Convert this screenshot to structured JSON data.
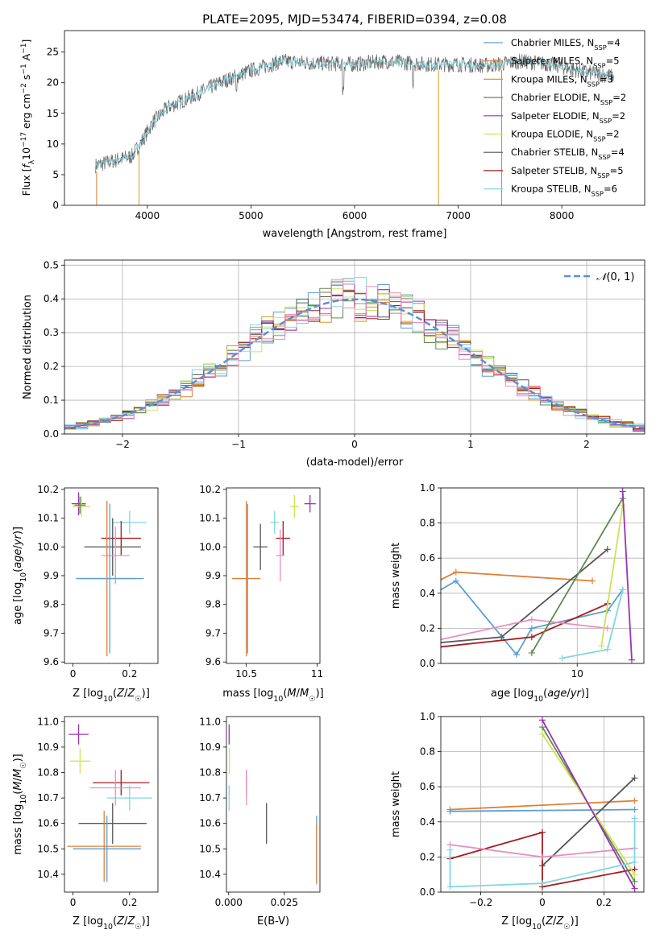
{
  "figure": {
    "title": "PLATE=2095, MJD=53474, FIBERID=0394, z=0.08"
  },
  "chart_data": [
    {
      "id": "spectrum",
      "type": "line",
      "xlabel": "wavelength [Angstrom, rest frame]",
      "ylabel": "Flux [fλ10⁻¹⁷ erg cm⁻² s⁻¹ A⁻¹]",
      "xlim": [
        3200,
        8800
      ],
      "ylim": [
        0,
        28.5
      ],
      "xticks": [
        4000,
        5000,
        6000,
        7000,
        8000
      ],
      "yticks": [
        0,
        5,
        10,
        15,
        20,
        25
      ],
      "x_range": [
        3500,
        8500
      ],
      "continuum": [
        [
          3500,
          6.5
        ],
        [
          3850,
          8
        ],
        [
          3950,
          10.5
        ],
        [
          4050,
          13.5
        ],
        [
          4200,
          16
        ],
        [
          4400,
          17.5
        ],
        [
          4700,
          20
        ],
        [
          5000,
          22
        ],
        [
          5300,
          23.5
        ],
        [
          5600,
          23.2
        ],
        [
          6000,
          23
        ],
        [
          6300,
          23.5
        ],
        [
          6700,
          23
        ],
        [
          7000,
          23
        ],
        [
          7300,
          22.8
        ],
        [
          7600,
          23.5
        ],
        [
          7900,
          23
        ],
        [
          8200,
          21.8
        ],
        [
          8500,
          21
        ]
      ],
      "legend": [
        {
          "name": "Chabrier MILES, N_SSP=4",
          "pre": "Chabrier MILES, N",
          "sub": "SSP",
          "post": "=4",
          "color": "#5f9ed1"
        },
        {
          "name": "Salpeter MILES, N_SSP=5",
          "pre": "Salpeter MILES, N",
          "sub": "SSP",
          "post": "=5",
          "color": "#e07f34"
        },
        {
          "name": "Kroupa MILES, N_SSP=3",
          "pre": "Kroupa MILES, N",
          "sub": "SSP",
          "post": "=3",
          "color": "#d89a1a"
        },
        {
          "name": "Chabrier ELODIE, N_SSP=2",
          "pre": "Chabrier ELODIE, N",
          "sub": "SSP",
          "post": "=2",
          "color": "#5e8c4e"
        },
        {
          "name": "Salpeter ELODIE, N_SSP=2",
          "pre": "Salpeter ELODIE, N",
          "sub": "SSP",
          "post": "=2",
          "color": "#9b33b3"
        },
        {
          "name": "Kroupa ELODIE, N_SSP=2",
          "pre": "Kroupa ELODIE, N",
          "sub": "SSP",
          "post": "=2",
          "color": "#cce35a"
        },
        {
          "name": "Chabrier STELIB, N_SSP=4",
          "pre": "Chabrier STELIB, N",
          "sub": "SSP",
          "post": "=4",
          "color": "#555555"
        },
        {
          "name": "Salpeter STELIB, N_SSP=5",
          "pre": "Salpeter STELIB, N",
          "sub": "SSP",
          "post": "=5",
          "color": "#a51c1c"
        },
        {
          "name": "Kroupa STELIB, N_SSP=6",
          "pre": "Kroupa STELIB, N",
          "sub": "SSP",
          "post": "=6",
          "color": "#7fd6e0"
        }
      ]
    },
    {
      "id": "residuals",
      "type": "histogram",
      "xlabel": "(data-model)/error",
      "ylabel": "Normed distribution",
      "xlim": [
        -2.5,
        2.5
      ],
      "ylim": [
        0,
        0.515
      ],
      "xticks": [
        -2,
        -1,
        0,
        1,
        2
      ],
      "yticks": [
        0.0,
        0.1,
        0.2,
        0.3,
        0.4,
        0.5
      ],
      "grid": true,
      "bin_width": 0.1,
      "legend_label": "𝒩(0, 1)",
      "reference_curve": "gaussian mean 0, sigma 1",
      "series_colors": [
        "#5f9ed1",
        "#e07f34",
        "#d89a1a",
        "#5e8c4e",
        "#9b33b3",
        "#cce35a",
        "#555555",
        "#a51c1c",
        "#7fd6e0",
        "#e88fbf"
      ]
    },
    {
      "id": "age-vs-Z",
      "type": "errorbar",
      "xlabel": "Z [log10(Z/Z☉)]",
      "ylabel": "age  [log10(age/yr)]",
      "xlim": [
        -0.03,
        0.3
      ],
      "ylim": [
        9.595,
        10.205
      ],
      "xticks": [
        0.0,
        0.2
      ],
      "yticks": [
        9.6,
        9.7,
        9.8,
        9.9,
        10.0,
        10.1,
        10.2
      ],
      "points": [
        {
          "x": 0.02,
          "y": 10.15,
          "xerr": 0.025,
          "yerr": 0.04,
          "color": "#9b33b3"
        },
        {
          "x": 0.03,
          "y": 10.14,
          "xerr": 0.03,
          "yerr": 0.035,
          "color": "#cce35a"
        },
        {
          "x": 0.025,
          "y": 10.145,
          "xerr": 0.02,
          "yerr": 0.03,
          "color": "#5e8c4e"
        },
        {
          "x": 0.2,
          "y": 10.085,
          "xerr": 0.06,
          "yerr": 0.04,
          "color": "#7fd6e0"
        },
        {
          "x": 0.17,
          "y": 10.03,
          "xerr": 0.07,
          "yerr": 0.06,
          "color": "#a51c1c"
        },
        {
          "x": 0.14,
          "y": 10.0,
          "xerr": 0.1,
          "yerr": 0.1,
          "color": "#555555"
        },
        {
          "x": 0.15,
          "y": 9.97,
          "xerr": 0.05,
          "yerr": 0.1,
          "color": "#e88fbf"
        },
        {
          "x": 0.12,
          "y": 9.89,
          "xerr": 0.1,
          "yerr": 0.27,
          "color": "#e07f34"
        },
        {
          "x": 0.13,
          "y": 9.89,
          "xerr": 0.12,
          "yerr": 0.26,
          "color": "#5f9ed1"
        }
      ]
    },
    {
      "id": "age-vs-mass",
      "type": "errorbar",
      "xlabel": "mass [log10(M/M☉)]",
      "xlim": [
        10.36,
        11.02
      ],
      "ylim": [
        9.595,
        10.205
      ],
      "xticks": [
        10.5,
        11.0
      ],
      "yticks": [
        9.6,
        9.7,
        9.8,
        9.9,
        10.0,
        10.1,
        10.2
      ],
      "points": [
        {
          "x": 10.95,
          "y": 10.15,
          "xerr": 0.04,
          "yerr": 0.03,
          "color": "#9b33b3"
        },
        {
          "x": 10.84,
          "y": 10.14,
          "xerr": 0.03,
          "yerr": 0.04,
          "color": "#cce35a"
        },
        {
          "x": 10.7,
          "y": 10.085,
          "xerr": 0.03,
          "yerr": 0.04,
          "color": "#7fd6e0"
        },
        {
          "x": 10.76,
          "y": 10.03,
          "xerr": 0.05,
          "yerr": 0.06,
          "color": "#a51c1c"
        },
        {
          "x": 10.6,
          "y": 10.0,
          "xerr": 0.05,
          "yerr": 0.08,
          "color": "#555555"
        },
        {
          "x": 10.74,
          "y": 9.97,
          "xerr": 0.03,
          "yerr": 0.09,
          "color": "#e88fbf"
        },
        {
          "x": 10.5,
          "y": 9.89,
          "xerr": 0.1,
          "yerr": 0.27,
          "color": "#e07f34"
        },
        {
          "x": 10.51,
          "y": 9.89,
          "xerr": 0.005,
          "yerr": 0.26,
          "color": "#5f9ed1"
        }
      ]
    },
    {
      "id": "weight-vs-age",
      "type": "line",
      "xlabel": "age  [log10(age/yr)]",
      "ylabel": "mass weight",
      "xlim": [
        9.55,
        10.22
      ],
      "ylim": [
        0.0,
        1.0
      ],
      "xticks": [
        9.0,
        9.5,
        10.0
      ],
      "yticks": [
        0.0,
        0.2,
        0.4,
        0.6,
        0.8,
        1.0
      ],
      "grid": true,
      "series": [
        {
          "color": "#e07f34",
          "points": [
            [
              9.0,
              0.0
            ],
            [
              9.6,
              0.52
            ],
            [
              10.05,
              0.47
            ]
          ]
        },
        {
          "color": "#5f9ed1",
          "points": [
            [
              9.15,
              0.02
            ],
            [
              9.6,
              0.47
            ],
            [
              9.8,
              0.05
            ],
            [
              9.85,
              0.2
            ],
            [
              10.1,
              0.3
            ],
            [
              10.15,
              0.42
            ]
          ]
        },
        {
          "color": "#555555",
          "points": [
            [
              9.3,
              0.08
            ],
            [
              9.75,
              0.15
            ],
            [
              10.1,
              0.65
            ]
          ]
        },
        {
          "color": "#a51c1c",
          "points": [
            [
              9.15,
              0.02
            ],
            [
              9.85,
              0.15
            ],
            [
              10.1,
              0.34
            ]
          ]
        },
        {
          "color": "#e88fbf",
          "points": [
            [
              9.35,
              0.06
            ],
            [
              9.85,
              0.25
            ],
            [
              10.1,
              0.2
            ]
          ]
        },
        {
          "color": "#5e8c4e",
          "points": [
            [
              9.85,
              0.06
            ],
            [
              10.15,
              0.94
            ]
          ]
        },
        {
          "color": "#cce35a",
          "points": [
            [
              10.08,
              0.1
            ],
            [
              10.15,
              0.9
            ]
          ]
        },
        {
          "color": "#9b33b3",
          "points": [
            [
              10.15,
              0.98
            ],
            [
              10.18,
              0.02
            ]
          ]
        },
        {
          "color": "#7fd6e0",
          "points": [
            [
              9.95,
              0.03
            ],
            [
              10.1,
              0.08
            ],
            [
              10.15,
              0.42
            ]
          ]
        }
      ]
    },
    {
      "id": "mass-vs-Z",
      "type": "errorbar",
      "xlabel": "Z [log10(Z/Z☉)]",
      "ylabel": "mass [log10(M/M☉)]",
      "xlim": [
        -0.03,
        0.3
      ],
      "ylim": [
        10.33,
        11.02
      ],
      "xticks": [
        0.0,
        0.2
      ],
      "yticks": [
        10.4,
        10.5,
        10.6,
        10.7,
        10.8,
        10.9,
        11.0
      ],
      "points": [
        {
          "x": 0.02,
          "y": 10.95,
          "xerr": 0.035,
          "yerr": 0.04,
          "color": "#9b33b3"
        },
        {
          "x": 0.025,
          "y": 10.845,
          "xerr": 0.035,
          "yerr": 0.05,
          "color": "#cce35a"
        },
        {
          "x": 0.2,
          "y": 10.7,
          "xerr": 0.08,
          "yerr": 0.05,
          "color": "#7fd6e0"
        },
        {
          "x": 0.17,
          "y": 10.76,
          "xerr": 0.1,
          "yerr": 0.05,
          "color": "#a51c1c"
        },
        {
          "x": 0.15,
          "y": 10.74,
          "xerr": 0.09,
          "yerr": 0.07,
          "color": "#e88fbf"
        },
        {
          "x": 0.14,
          "y": 10.6,
          "xerr": 0.12,
          "yerr": 0.08,
          "color": "#555555"
        },
        {
          "x": 0.11,
          "y": 10.51,
          "xerr": 0.13,
          "yerr": 0.14,
          "color": "#e07f34"
        },
        {
          "x": 0.12,
          "y": 10.5,
          "xerr": 0.12,
          "yerr": 0.13,
          "color": "#5f9ed1"
        }
      ]
    },
    {
      "id": "mass-vs-ebv",
      "type": "errorbar",
      "xlabel": "E(B-V)",
      "xlim": [
        -0.001,
        0.041
      ],
      "ylim": [
        10.33,
        11.02
      ],
      "xticks": [
        0.0,
        0.025
      ],
      "xticklabels": [
        "0.000",
        "0.025"
      ],
      "yticks": [
        10.4,
        10.5,
        10.6,
        10.7,
        10.8,
        10.9,
        11.0
      ],
      "points": [
        {
          "x": 0.0002,
          "y": 10.95,
          "xerr": 0,
          "yerr": 0.04,
          "color": "#9b33b3"
        },
        {
          "x": 0.0003,
          "y": 10.845,
          "xerr": 0,
          "yerr": 0.05,
          "color": "#cce35a"
        },
        {
          "x": 0.0002,
          "y": 10.7,
          "xerr": 0,
          "yerr": 0.05,
          "color": "#7fd6e0"
        },
        {
          "x": 0.008,
          "y": 10.76,
          "xerr": 0,
          "yerr": 0.05,
          "color": "#a51c1c"
        },
        {
          "x": 0.008,
          "y": 10.74,
          "xerr": 0,
          "yerr": 0.07,
          "color": "#e88fbf"
        },
        {
          "x": 0.017,
          "y": 10.6,
          "xerr": 0,
          "yerr": 0.08,
          "color": "#555555"
        },
        {
          "x": 0.0395,
          "y": 10.5,
          "xerr": 0,
          "yerr": 0.13,
          "color": "#5f9ed1"
        },
        {
          "x": 0.0395,
          "y": 10.48,
          "xerr": 0,
          "yerr": 0.12,
          "color": "#e07f34"
        }
      ]
    },
    {
      "id": "weight-vs-Z",
      "type": "line",
      "xlabel": "Z [log10(Z/Z☉)]",
      "ylabel": "mass weight",
      "xlim": [
        -0.33,
        0.33
      ],
      "ylim": [
        0.0,
        1.0
      ],
      "xticks": [
        -0.2,
        0.0,
        0.2
      ],
      "yticks": [
        0.0,
        0.2,
        0.4,
        0.6,
        0.8,
        1.0
      ],
      "grid": true,
      "series": [
        {
          "color": "#e07f34",
          "points": [
            [
              -0.3,
              0.47
            ],
            [
              0.3,
              0.52
            ]
          ]
        },
        {
          "color": "#5f9ed1",
          "points": [
            [
              -0.3,
              0.46
            ],
            [
              0.3,
              0.47
            ]
          ]
        },
        {
          "color": "#555555",
          "points": [
            [
              0.0,
              0.15
            ],
            [
              0.3,
              0.65
            ]
          ]
        },
        {
          "color": "#a51c1c",
          "points": [
            [
              -0.3,
              0.19
            ],
            [
              0.0,
              0.34
            ],
            [
              0.0,
              0.03
            ],
            [
              0.3,
              0.13
            ]
          ]
        },
        {
          "color": "#e88fbf",
          "points": [
            [
              -0.3,
              0.27
            ],
            [
              0.0,
              0.2
            ],
            [
              0.3,
              0.25
            ]
          ]
        },
        {
          "color": "#5e8c4e",
          "points": [
            [
              0.0,
              0.94
            ],
            [
              0.3,
              0.06
            ]
          ]
        },
        {
          "color": "#cce35a",
          "points": [
            [
              0.0,
              0.9
            ],
            [
              0.3,
              0.1
            ]
          ]
        },
        {
          "color": "#9b33b3",
          "points": [
            [
              0.0,
              0.98
            ],
            [
              0.3,
              0.02
            ]
          ]
        },
        {
          "color": "#7fd6e0",
          "points": [
            [
              -0.3,
              0.24
            ],
            [
              -0.3,
              0.03
            ],
            [
              0.0,
              0.05
            ],
            [
              0.3,
              0.17
            ],
            [
              0.3,
              0.42
            ]
          ]
        }
      ]
    }
  ]
}
